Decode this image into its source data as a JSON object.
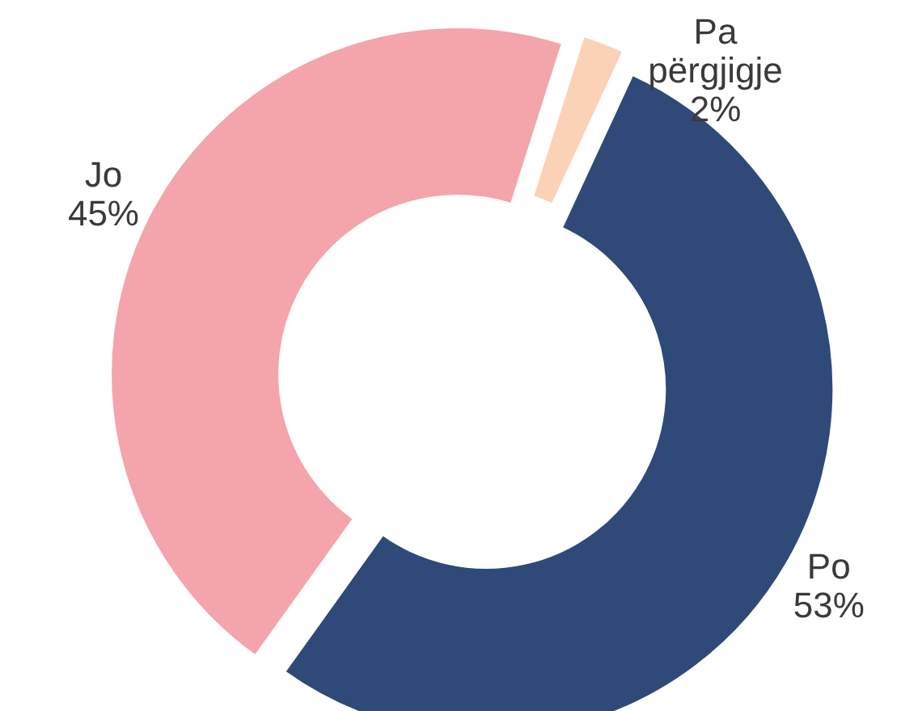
{
  "chart_data": {
    "type": "donut",
    "categories": [
      "Po",
      "Jo",
      "Pa përgjigje"
    ],
    "values": [
      53,
      45,
      2
    ],
    "value_labels": [
      "53%",
      "45%",
      "2%"
    ],
    "colors": [
      "#2f4a78",
      "#f4a4ab",
      "#fcd2b6"
    ]
  }
}
